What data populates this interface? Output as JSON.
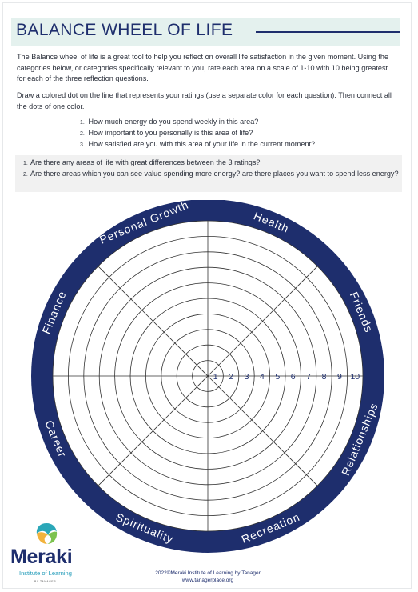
{
  "header": {
    "title": "BALANCE WHEEL OF LIFE"
  },
  "intro": {
    "paragraph1": "The Balance wheel of life is a great tool to help you reflect on overall life satisfaction in the given moment. Using the categories below, or categories specifically relevant to you, rate each area on a scale of 1-10 with 10 being greatest for each of the three reflection questions.",
    "paragraph2": "Draw a colored dot on the line that represents your ratings (use a separate color for each question). Then connect all the dots of one color."
  },
  "questions": [
    {
      "num": "1.",
      "text": "How much energy do you spend weekly in this area?"
    },
    {
      "num": "2.",
      "text": "How important to you personally is this area of life?"
    },
    {
      "num": "3.",
      "text": "How satisfied are you with this area of your life in the current moment?"
    }
  ],
  "reflection": [
    {
      "num": "1.",
      "text": "Are there any areas of life with great differences between the 3 ratings?"
    },
    {
      "num": "2.",
      "text": "Are there areas which you can see value spending more energy? are there places you want to spend less energy?"
    }
  ],
  "wheel": {
    "rim_color": "#1e2e6d",
    "categories": [
      "Health",
      "Friends",
      "Relationships",
      "Recreation",
      "Spirituality",
      "Career",
      "Finance",
      "Personal Growth"
    ],
    "scale": [
      "1",
      "2",
      "3",
      "4",
      "5",
      "6",
      "7",
      "8",
      "9",
      "10"
    ]
  },
  "logo": {
    "name": "Meraki",
    "subtitle": "Institute of Learning",
    "tagline": "BY TANAGER"
  },
  "footer": {
    "line1": "2022©Meraki Institute of Learning by Tanager",
    "line2": "www.tanagerplace.org"
  }
}
